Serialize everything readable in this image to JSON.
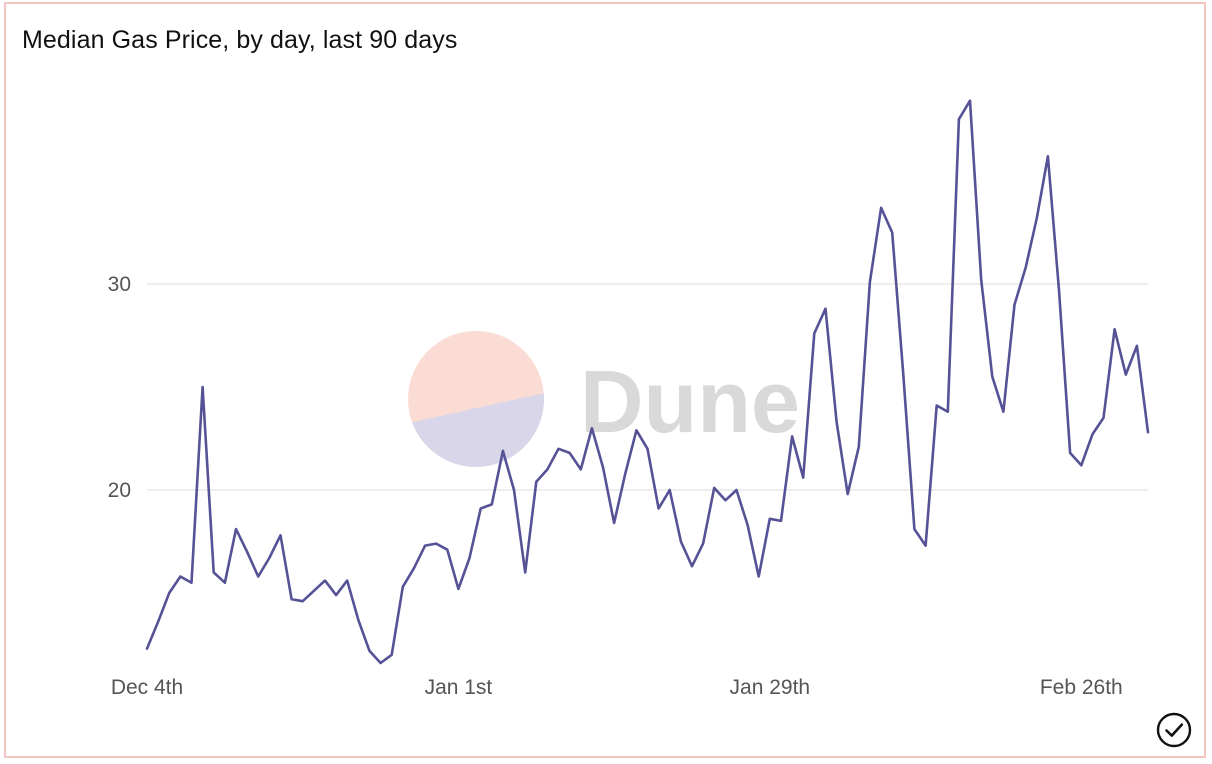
{
  "colors": {
    "line": "#565296",
    "grid": "#e8e8e8",
    "card_border": "#f5c6c0",
    "watermark_pink": "#fbdcd5",
    "watermark_lavender": "#d9d6ea",
    "watermark_text": "#d9d9d9"
  },
  "watermark": {
    "text": "Dune"
  },
  "status_icon": "check-circle-icon",
  "chart_data": {
    "type": "line",
    "title": "Median Gas Price, by day, last 90 days",
    "xlabel": "",
    "ylabel": "",
    "x_tick_labels": [
      "Dec 4th",
      "Jan 1st",
      "Jan 29th",
      "Feb 26th"
    ],
    "x_tick_indices": [
      0,
      28,
      56,
      84
    ],
    "y_ticks": [
      20,
      30
    ],
    "ylim": [
      10,
      38
    ],
    "grid": true,
    "series": [
      {
        "values": [
          12.3,
          13.6,
          15.0,
          15.8,
          15.5,
          25.0,
          16.0,
          15.5,
          18.1,
          17.0,
          15.8,
          16.7,
          17.8,
          14.7,
          14.6,
          15.1,
          15.6,
          14.9,
          15.6,
          13.7,
          12.2,
          11.6,
          12.0,
          15.3,
          16.2,
          17.3,
          17.4,
          17.1,
          15.2,
          16.7,
          19.1,
          19.3,
          21.9,
          20.0,
          16.0,
          20.4,
          21.0,
          22.0,
          21.8,
          21.0,
          23.0,
          21.1,
          18.4,
          20.8,
          22.9,
          22.0,
          19.1,
          20.0,
          17.5,
          16.3,
          17.4,
          20.1,
          19.5,
          20.0,
          18.3,
          15.8,
          18.6,
          18.5,
          22.6,
          20.6,
          27.6,
          28.8,
          23.3,
          19.8,
          22.1,
          30.1,
          33.7,
          32.5,
          25.6,
          18.1,
          17.3,
          24.1,
          23.8,
          38.0,
          38.9,
          30.2,
          25.5,
          23.8,
          29.0,
          30.8,
          33.2,
          36.2,
          29.7,
          21.8,
          21.2,
          22.7,
          23.5,
          27.8,
          25.6,
          27.0,
          22.8
        ]
      }
    ]
  }
}
